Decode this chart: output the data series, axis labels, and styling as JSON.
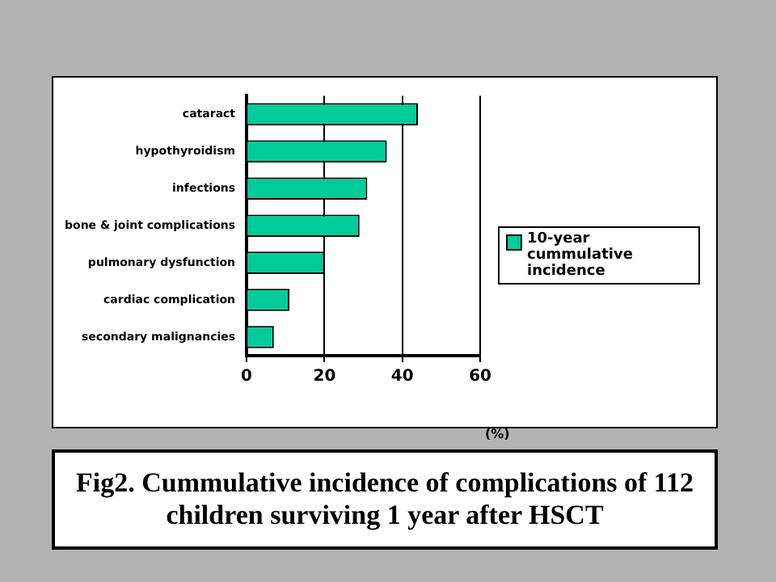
{
  "chart_data": {
    "type": "bar",
    "orientation": "horizontal",
    "title": "Fig2.  Cummulative incidence of complications of 112 children surviving 1 year after HSCT",
    "xlabel": "(%)",
    "categories": [
      "cataract",
      "hypothyroidism",
      "infections",
      "bone & joint complications",
      "pulmonary dysfunction",
      "cardiac complication",
      "secondary malignancies"
    ],
    "series": [
      {
        "name": "10-year cummulative incidence",
        "color": "#00cc99",
        "values": [
          44,
          36,
          31,
          29,
          20,
          11,
          7
        ]
      }
    ],
    "xlim": [
      0,
      60
    ],
    "xticks": [
      0,
      20,
      40,
      60
    ],
    "grid": "x",
    "legend": "right"
  }
}
